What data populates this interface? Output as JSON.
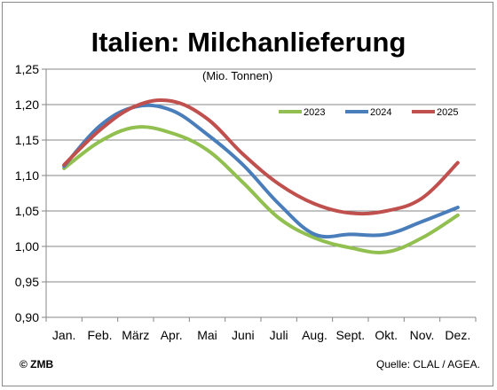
{
  "chart_data": {
    "type": "line",
    "title": "Italien: Milchanlieferung",
    "subtitle": "(Mio. Tonnen)",
    "categories": [
      "Jan.",
      "Feb.",
      "März",
      "Apr.",
      "Mai",
      "Juni",
      "Juli",
      "Aug.",
      "Sept.",
      "Okt.",
      "Nov.",
      "Dez."
    ],
    "ylim": [
      0.9,
      1.25
    ],
    "yticks": [
      "0,90",
      "0,95",
      "1,00",
      "1,05",
      "1,10",
      "1,15",
      "1,20",
      "1,25"
    ],
    "grid": "horizontal",
    "legend_position": "top-right",
    "series": [
      {
        "name": "2023",
        "color": "#92c050",
        "values": [
          1.11,
          1.148,
          1.168,
          1.16,
          1.136,
          1.09,
          1.04,
          1.012,
          0.998,
          0.992,
          1.012,
          1.044
        ]
      },
      {
        "name": "2024",
        "color": "#4a7ebb",
        "values": [
          1.113,
          1.17,
          1.197,
          1.192,
          1.158,
          1.115,
          1.06,
          1.017,
          1.017,
          1.017,
          1.035,
          1.055
        ]
      },
      {
        "name": "2025",
        "color": "#c0504d",
        "values": [
          1.115,
          1.164,
          1.198,
          1.205,
          1.18,
          1.13,
          1.088,
          1.06,
          1.047,
          1.05,
          1.068,
          1.118
        ]
      }
    ]
  },
  "footer": {
    "copyright": "© ZMB",
    "source": "Quelle: CLAL / AGEA."
  }
}
